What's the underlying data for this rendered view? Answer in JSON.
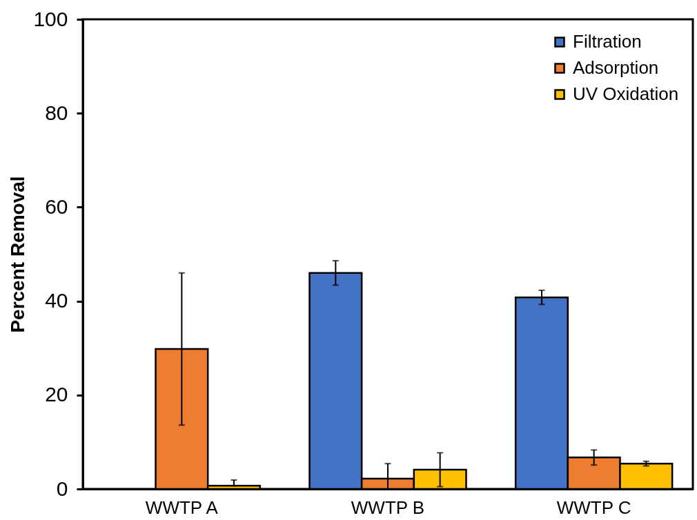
{
  "chart_data": {
    "type": "bar",
    "ylabel": "Percent Removal",
    "categories": [
      "WWTP A",
      "WWTP B",
      "WWTP C"
    ],
    "series": [
      {
        "name": "Filtration",
        "color": "#4472c4",
        "values": [
          null,
          46.0,
          40.8
        ],
        "errors": [
          null,
          2.6,
          1.5
        ]
      },
      {
        "name": "Adsorption",
        "color": "#ed7d31",
        "values": [
          29.8,
          2.2,
          6.7
        ],
        "errors": [
          16.2,
          [
            0,
            5.4
          ],
          1.6
        ]
      },
      {
        "name": "UV Oxidation",
        "color": "#ffc000",
        "values": [
          0.7,
          4.1,
          5.4
        ],
        "errors": [
          [
            0.7,
            1.9
          ],
          3.6,
          0.5
        ]
      }
    ],
    "ylim": [
      0,
      100
    ],
    "yticks": [
      0,
      20,
      40,
      60,
      80,
      100
    ],
    "legend": "top right"
  }
}
